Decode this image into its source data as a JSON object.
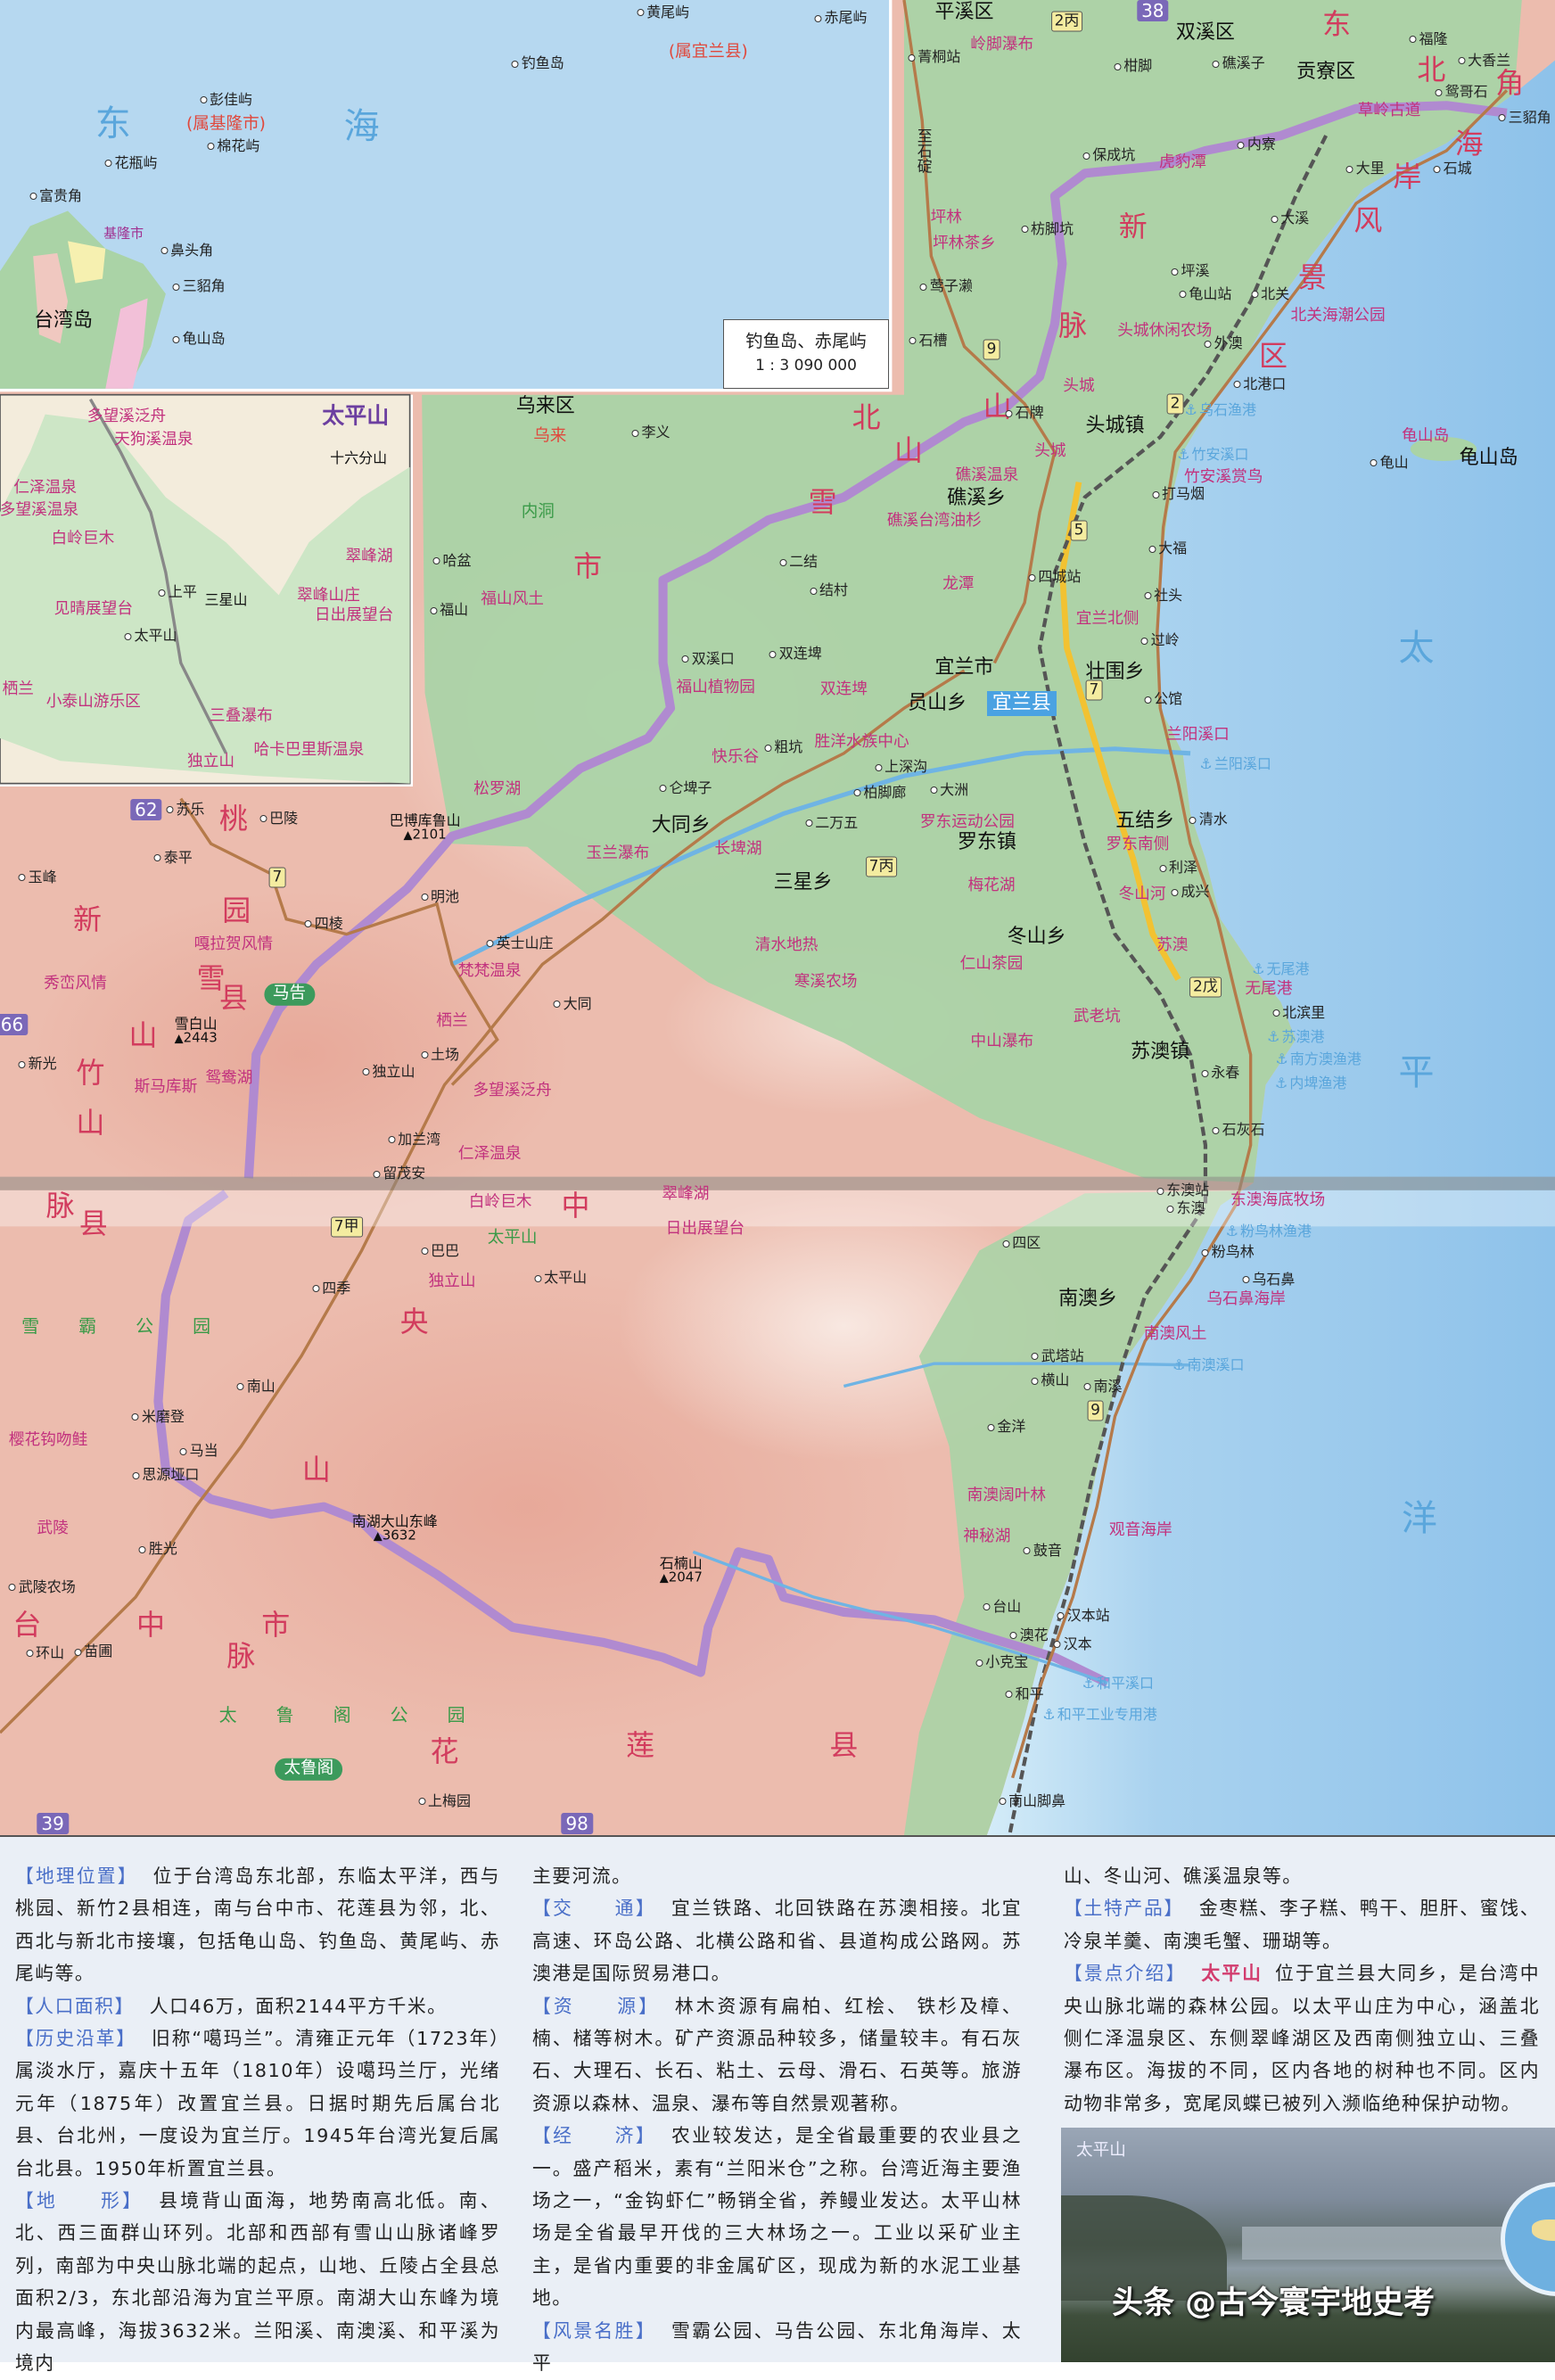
{
  "colors": {
    "sea": "#b4d6ee",
    "plain": "#a9d3a4",
    "mountain": "#ecbcae",
    "county_boundary": "#a87cc4",
    "scenic": "#c2327e",
    "section_label": "#4a6fc8"
  },
  "inset_diaoyu": {
    "scale_title": "钓鱼岛、赤尾屿",
    "scale_ratio": "1 : 3 090 000"
  },
  "map": {
    "labels": [
      {
        "text": "黄尾屿",
        "kind": "town"
      },
      {
        "text": "赤尾屿",
        "kind": "town"
      },
      {
        "text": "(属宜兰县)",
        "kind": "red"
      },
      {
        "text": "钓鱼岛",
        "kind": "town"
      },
      {
        "text": "彭佳屿",
        "kind": "town"
      },
      {
        "text": "东",
        "kind": "sea"
      },
      {
        "text": "(属基隆市)",
        "kind": "red"
      },
      {
        "text": "海",
        "kind": "sea"
      },
      {
        "text": "棉花屿",
        "kind": "town"
      },
      {
        "text": "花瓶屿",
        "kind": "town"
      },
      {
        "text": "富贵角",
        "kind": "town"
      },
      {
        "text": "基隆市",
        "kind": "smallpurple"
      },
      {
        "text": "鼻头角",
        "kind": "town"
      },
      {
        "text": "三貂角",
        "kind": "town"
      },
      {
        "text": "台湾岛",
        "kind": "major"
      },
      {
        "text": "龟山岛",
        "kind": "town"
      },
      {
        "text": "太平山",
        "kind": "title"
      },
      {
        "text": "多望溪泛舟",
        "kind": "scenic"
      },
      {
        "text": "天狗溪温泉",
        "kind": "scenic"
      },
      {
        "text": "十六分山",
        "kind": "mtn"
      },
      {
        "text": "仁泽温泉",
        "kind": "scenic"
      },
      {
        "text": "多望溪温泉",
        "kind": "scenic"
      },
      {
        "text": "白岭巨木",
        "kind": "scenic"
      },
      {
        "text": "翠峰湖",
        "kind": "scenic"
      },
      {
        "text": "上平",
        "kind": "town"
      },
      {
        "text": "三星山",
        "kind": "mtn"
      },
      {
        "text": "翠峰山庄",
        "kind": "scenic"
      },
      {
        "text": "见晴展望台",
        "kind": "scenic"
      },
      {
        "text": "日出展望台",
        "kind": "scenic"
      },
      {
        "text": "太平山",
        "kind": "town"
      },
      {
        "text": "栖兰",
        "kind": "scenic"
      },
      {
        "text": "小泰山游乐区",
        "kind": "scenic"
      },
      {
        "text": "三叠瀑布",
        "kind": "scenic"
      },
      {
        "text": "哈卡巴里斯温泉",
        "kind": "scenic"
      },
      {
        "text": "独立山",
        "kind": "scenic"
      },
      {
        "text": "平溪区",
        "kind": "major"
      },
      {
        "text": "2丙",
        "kind": "shieldY"
      },
      {
        "text": "38",
        "kind": "shieldP"
      },
      {
        "text": "双溪区",
        "kind": "major"
      },
      {
        "text": "东",
        "kind": "region"
      },
      {
        "text": "福隆",
        "kind": "town"
      },
      {
        "text": "岭脚瀑布",
        "kind": "scenic"
      },
      {
        "text": "菁桐站",
        "kind": "town"
      },
      {
        "text": "大香兰",
        "kind": "town"
      },
      {
        "text": "北",
        "kind": "region"
      },
      {
        "text": "柑脚",
        "kind": "town"
      },
      {
        "text": "礁溪子",
        "kind": "town"
      },
      {
        "text": "贡寮区",
        "kind": "major"
      },
      {
        "text": "角",
        "kind": "region"
      },
      {
        "text": "鸳哥石",
        "kind": "town"
      },
      {
        "text": "草岭古道",
        "kind": "scenic"
      },
      {
        "text": "三貂角",
        "kind": "town"
      },
      {
        "text": "至石碇",
        "kind": "vtown"
      },
      {
        "text": "内寮",
        "kind": "town"
      },
      {
        "text": "保成坑",
        "kind": "town"
      },
      {
        "text": "虎豹潭",
        "kind": "scenic"
      },
      {
        "text": "海",
        "kind": "region"
      },
      {
        "text": "大里",
        "kind": "town"
      },
      {
        "text": "石城",
        "kind": "town"
      },
      {
        "text": "岸",
        "kind": "region"
      },
      {
        "text": "坪林",
        "kind": "scenic"
      },
      {
        "text": "枋脚坑",
        "kind": "town"
      },
      {
        "text": "新",
        "kind": "region"
      },
      {
        "text": "风",
        "kind": "region"
      },
      {
        "text": "大溪",
        "kind": "town"
      },
      {
        "text": "坪林茶乡",
        "kind": "scenic"
      },
      {
        "text": "坪溪",
        "kind": "town"
      },
      {
        "text": "景",
        "kind": "region"
      },
      {
        "text": "莺子濑",
        "kind": "town"
      },
      {
        "text": "龟山站",
        "kind": "town"
      },
      {
        "text": "北关",
        "kind": "town"
      },
      {
        "text": "北关海潮公园",
        "kind": "scenic"
      },
      {
        "text": "脉",
        "kind": "region"
      },
      {
        "text": "头城休闲农场",
        "kind": "scenic"
      },
      {
        "text": "石槽",
        "kind": "town"
      },
      {
        "text": "9",
        "kind": "shieldY"
      },
      {
        "text": "外澳",
        "kind": "town"
      },
      {
        "text": "区",
        "kind": "region"
      },
      {
        "text": "北港口",
        "kind": "town"
      },
      {
        "text": "山",
        "kind": "region"
      },
      {
        "text": "石牌",
        "kind": "town"
      },
      {
        "text": "头城",
        "kind": "scenic"
      },
      {
        "text": "2",
        "kind": "shieldY"
      },
      {
        "text": "乌石渔港",
        "kind": "port"
      },
      {
        "text": "头城镇",
        "kind": "major"
      },
      {
        "text": "龟山岛",
        "kind": "scenic"
      },
      {
        "text": "龟山",
        "kind": "town"
      },
      {
        "text": "龟山岛",
        "kind": "major"
      },
      {
        "text": "竹安溪口",
        "kind": "port"
      },
      {
        "text": "头城",
        "kind": "scenic"
      },
      {
        "text": "竹安溪赏鸟",
        "kind": "scenic"
      },
      {
        "text": "礁溪温泉",
        "kind": "scenic"
      },
      {
        "text": "打马烟",
        "kind": "town"
      },
      {
        "text": "礁溪乡",
        "kind": "major"
      },
      {
        "text": "礁溪台湾油杉",
        "kind": "scenic"
      },
      {
        "text": "北",
        "kind": "region"
      },
      {
        "text": "山",
        "kind": "region"
      },
      {
        "text": "雪",
        "kind": "region"
      },
      {
        "text": "乌来区",
        "kind": "major"
      },
      {
        "text": "乌来",
        "kind": "red"
      },
      {
        "text": "李义",
        "kind": "town"
      },
      {
        "text": "内洞",
        "kind": "green"
      },
      {
        "text": "哈盆",
        "kind": "town"
      },
      {
        "text": "市",
        "kind": "region"
      },
      {
        "text": "福山风土",
        "kind": "scenic"
      },
      {
        "text": "福山",
        "kind": "town"
      },
      {
        "text": "二结",
        "kind": "town"
      },
      {
        "text": "结村",
        "kind": "town"
      },
      {
        "text": "龙潭",
        "kind": "scenic"
      },
      {
        "text": "四城站",
        "kind": "town"
      },
      {
        "text": "大福",
        "kind": "town"
      },
      {
        "text": "社头",
        "kind": "town"
      },
      {
        "text": "宜兰北侧",
        "kind": "scenic"
      },
      {
        "text": "过岭",
        "kind": "town"
      },
      {
        "text": "太",
        "kind": "sea"
      },
      {
        "text": "双溪口",
        "kind": "town"
      },
      {
        "text": "双连埤",
        "kind": "town"
      },
      {
        "text": "宜兰市",
        "kind": "major"
      },
      {
        "text": "壮围乡",
        "kind": "major"
      },
      {
        "text": "福山植物园",
        "kind": "scenic"
      },
      {
        "text": "双连埤",
        "kind": "scenic"
      },
      {
        "text": "7",
        "kind": "shieldY"
      },
      {
        "text": "公馆",
        "kind": "town"
      },
      {
        "text": "员山乡",
        "kind": "major"
      },
      {
        "text": "宜兰县",
        "kind": "bluebox"
      },
      {
        "text": "兰阳溪口",
        "kind": "scenic"
      },
      {
        "text": "粗坑",
        "kind": "town"
      },
      {
        "text": "胜洋水族中心",
        "kind": "scenic"
      },
      {
        "text": "快乐谷",
        "kind": "scenic"
      },
      {
        "text": "兰阳溪口",
        "kind": "port"
      },
      {
        "text": "上深沟",
        "kind": "town"
      },
      {
        "text": "松罗湖",
        "kind": "scenic"
      },
      {
        "text": "仑埤子",
        "kind": "town"
      },
      {
        "text": "柏脚廊",
        "kind": "town"
      },
      {
        "text": "大洲",
        "kind": "town"
      },
      {
        "text": "大同乡",
        "kind": "major"
      },
      {
        "text": "二万五",
        "kind": "town"
      },
      {
        "text": "罗东运动公园",
        "kind": "scenic"
      },
      {
        "text": "五结乡",
        "kind": "major"
      },
      {
        "text": "清水",
        "kind": "town"
      },
      {
        "text": "巴博库鲁山",
        "kind": "mtn",
        "elev": "2101"
      },
      {
        "text": "罗东镇",
        "kind": "major"
      },
      {
        "text": "罗东南侧",
        "kind": "scenic"
      },
      {
        "text": "玉兰瀑布",
        "kind": "scenic"
      },
      {
        "text": "长埤湖",
        "kind": "scenic"
      },
      {
        "text": "7丙",
        "kind": "shieldY"
      },
      {
        "text": "利泽",
        "kind": "town"
      },
      {
        "text": "三星乡",
        "kind": "major"
      },
      {
        "text": "梅花湖",
        "kind": "scenic"
      },
      {
        "text": "冬山河",
        "kind": "scenic"
      },
      {
        "text": "成兴",
        "kind": "town"
      },
      {
        "text": "冬山乡",
        "kind": "major"
      },
      {
        "text": "清水地热",
        "kind": "scenic"
      },
      {
        "text": "苏澳",
        "kind": "scenic"
      },
      {
        "text": "仁山茶园",
        "kind": "scenic"
      },
      {
        "text": "无尾港",
        "kind": "port"
      },
      {
        "text": "寒溪农场",
        "kind": "scenic"
      },
      {
        "text": "无尾港",
        "kind": "scenic"
      },
      {
        "text": "北滨里",
        "kind": "town"
      },
      {
        "text": "武老坑",
        "kind": "scenic"
      },
      {
        "text": "苏澳港",
        "kind": "port"
      },
      {
        "text": "中山瀑布",
        "kind": "scenic"
      },
      {
        "text": "苏澳镇",
        "kind": "major"
      },
      {
        "text": "南方澳渔港",
        "kind": "port"
      },
      {
        "text": "永春",
        "kind": "town"
      },
      {
        "text": "平",
        "kind": "sea"
      },
      {
        "text": "内埤渔港",
        "kind": "port"
      },
      {
        "text": "石灰石",
        "kind": "town"
      },
      {
        "text": "英士山庄",
        "kind": "town"
      },
      {
        "text": "梵梵温泉",
        "kind": "scenic"
      },
      {
        "text": "大同",
        "kind": "town"
      },
      {
        "text": "栖兰",
        "kind": "scenic"
      },
      {
        "text": "土场",
        "kind": "town"
      },
      {
        "text": "独立山",
        "kind": "town"
      },
      {
        "text": "多望溪泛舟",
        "kind": "scenic"
      },
      {
        "text": "加兰湾",
        "kind": "town"
      },
      {
        "text": "仁泽温泉",
        "kind": "scenic"
      },
      {
        "text": "留茂安",
        "kind": "town"
      },
      {
        "text": "62",
        "kind": "shieldP"
      },
      {
        "text": "苏乐",
        "kind": "town"
      },
      {
        "text": "桃",
        "kind": "region"
      },
      {
        "text": "巴陵",
        "kind": "town"
      },
      {
        "text": "泰平",
        "kind": "town"
      },
      {
        "text": "玉峰",
        "kind": "town"
      },
      {
        "text": "7",
        "kind": "shieldY"
      },
      {
        "text": "明池",
        "kind": "town"
      },
      {
        "text": "园",
        "kind": "region"
      },
      {
        "text": "新",
        "kind": "region"
      },
      {
        "text": "四棱",
        "kind": "town"
      },
      {
        "text": "嘎拉贺风情",
        "kind": "scenic"
      },
      {
        "text": "雪",
        "kind": "region"
      },
      {
        "text": "秀峦风情",
        "kind": "scenic"
      },
      {
        "text": "县",
        "kind": "region"
      },
      {
        "text": "马告",
        "kind": "greenbox"
      },
      {
        "text": "66",
        "kind": "shieldP"
      },
      {
        "text": "雪白山",
        "kind": "mtn",
        "elev": "2443"
      },
      {
        "text": "山",
        "kind": "region"
      },
      {
        "text": "新光",
        "kind": "town"
      },
      {
        "text": "斯马库斯",
        "kind": "scenic"
      },
      {
        "text": "竹",
        "kind": "region"
      },
      {
        "text": "鸳鸯湖",
        "kind": "scenic"
      },
      {
        "text": "山",
        "kind": "region"
      },
      {
        "text": "脉",
        "kind": "region"
      },
      {
        "text": "白岭巨木",
        "kind": "scenic"
      },
      {
        "text": "中",
        "kind": "region"
      },
      {
        "text": "翠峰湖",
        "kind": "scenic"
      },
      {
        "text": "县",
        "kind": "region"
      },
      {
        "text": "7甲",
        "kind": "shieldY"
      },
      {
        "text": "日出展望台",
        "kind": "scenic"
      },
      {
        "text": "太平山",
        "kind": "green"
      },
      {
        "text": "巴巴",
        "kind": "town"
      },
      {
        "text": "太平山",
        "kind": "town"
      },
      {
        "text": "独立山",
        "kind": "scenic"
      },
      {
        "text": "四季",
        "kind": "town"
      },
      {
        "text": "央",
        "kind": "region"
      },
      {
        "text": "雪霸公园",
        "kind": "park"
      },
      {
        "text": "南山",
        "kind": "town"
      },
      {
        "text": "米磨登",
        "kind": "town"
      },
      {
        "text": "樱花钩吻鲑",
        "kind": "scenic"
      },
      {
        "text": "马当",
        "kind": "town"
      },
      {
        "text": "山",
        "kind": "region"
      },
      {
        "text": "思源垭口",
        "kind": "town"
      },
      {
        "text": "南湖大山东峰",
        "kind": "mtn",
        "elev": "3632"
      },
      {
        "text": "武陵",
        "kind": "scenic"
      },
      {
        "text": "胜光",
        "kind": "town"
      },
      {
        "text": "石楠山",
        "kind": "mtn",
        "elev": "2047"
      },
      {
        "text": "武陵农场",
        "kind": "town"
      },
      {
        "text": "台",
        "kind": "region"
      },
      {
        "text": "中",
        "kind": "region"
      },
      {
        "text": "市",
        "kind": "region"
      },
      {
        "text": "环山",
        "kind": "town"
      },
      {
        "text": "苗圃",
        "kind": "town"
      },
      {
        "text": "脉",
        "kind": "region"
      },
      {
        "text": "太鲁阁公园",
        "kind": "park"
      },
      {
        "text": "花",
        "kind": "region"
      },
      {
        "text": "莲",
        "kind": "region"
      },
      {
        "text": "县",
        "kind": "region"
      },
      {
        "text": "太鲁阁",
        "kind": "greenbox"
      },
      {
        "text": "上梅园",
        "kind": "town"
      },
      {
        "text": "39",
        "kind": "shieldP"
      },
      {
        "text": "98",
        "kind": "shieldP"
      },
      {
        "text": "东澳站",
        "kind": "town"
      },
      {
        "text": "东澳",
        "kind": "town"
      },
      {
        "text": "东澳海底牧场",
        "kind": "scenic"
      },
      {
        "text": "四区",
        "kind": "town"
      },
      {
        "text": "粉鸟林渔港",
        "kind": "port"
      },
      {
        "text": "粉鸟林",
        "kind": "town"
      },
      {
        "text": "乌石鼻",
        "kind": "town"
      },
      {
        "text": "南澳乡",
        "kind": "major"
      },
      {
        "text": "乌石鼻海岸",
        "kind": "scenic"
      },
      {
        "text": "南澳风土",
        "kind": "scenic"
      },
      {
        "text": "武塔站",
        "kind": "town"
      },
      {
        "text": "南澳溪口",
        "kind": "port"
      },
      {
        "text": "横山",
        "kind": "town"
      },
      {
        "text": "南溪",
        "kind": "town"
      },
      {
        "text": "9",
        "kind": "shieldY"
      },
      {
        "text": "金洋",
        "kind": "town"
      },
      {
        "text": "南澳阔叶林",
        "kind": "scenic"
      },
      {
        "text": "洋",
        "kind": "sea"
      },
      {
        "text": "观音海岸",
        "kind": "scenic"
      },
      {
        "text": "神秘湖",
        "kind": "scenic"
      },
      {
        "text": "鼓音",
        "kind": "town"
      },
      {
        "text": "台山",
        "kind": "town"
      },
      {
        "text": "汉本站",
        "kind": "town"
      },
      {
        "text": "澳花",
        "kind": "town"
      },
      {
        "text": "汉本",
        "kind": "town"
      },
      {
        "text": "小克宝",
        "kind": "town"
      },
      {
        "text": "和平溪口",
        "kind": "port"
      },
      {
        "text": "和平",
        "kind": "town"
      },
      {
        "text": "和平工业专用港",
        "kind": "port"
      },
      {
        "text": "南山脚鼻",
        "kind": "town"
      },
      {
        "text": "2戊",
        "kind": "shieldY"
      },
      {
        "text": "5",
        "kind": "shieldY"
      }
    ]
  },
  "info": {
    "col1": [
      {
        "label": "【地理位置】",
        "text": "位于台湾岛东北部，东临太平洋，西与桃园、新竹2县相连，南与台中市、花莲县为邻，北、西北与新北市接壤，包括龟山岛、钓鱼岛、黄尾屿、赤尾屿等。"
      },
      {
        "label": "【人口面积】",
        "text": "人口46万，面积2144平方千米。"
      },
      {
        "label": "【历史沿革】",
        "text": "旧称“噶玛兰”。清雍正元年（1723年）属淡水厅，嘉庆十五年（1810年）设噶玛兰厅，光绪元年（1875年）改置宜兰县。日据时期先后属台北县、台北州，一度设为宜兰厅。1945年台湾光复后属台北县。1950年析置宜兰县。"
      },
      {
        "label": "【地　　形】",
        "text": "县境背山面海，地势南高北低。南、北、西三面群山环列。北部和西部有雪山山脉诸峰罗列，南部为中央山脉北端的起点，山地、丘陵占全县总面积2/3，东北部沿海为宜兰平原。南湖大山东峰为境内最高峰，海拔3632米。兰阳溪、南澳溪、和平溪为境内"
      }
    ],
    "col2": [
      {
        "label": "",
        "text": "主要河流。"
      },
      {
        "label": "【交　　通】",
        "text": "宜兰铁路、北回铁路在苏澳相接。北宜高速、环岛公路、北横公路和省、县道构成公路网。苏澳港是国际贸易港口。"
      },
      {
        "label": "【资　　源】",
        "text": "林木资源有扁柏、红桧、 铁杉及樟、楠、槠等树木。矿产资源品种较多，储量较丰。有石灰石、大理石、长石、粘土、云母、滑石、石英等。旅游资源以森林、温泉、瀑布等自然景观著称。"
      },
      {
        "label": "【经　　济】",
        "text": "农业较发达，是全省最重要的农业县之一。盛产稻米，素有“兰阳米仓”之称。台湾近海主要渔场之一，“金钩虾仁”畅销全省，养鳗业发达。太平山林场是全省最早开伐的三大林场之一。工业以采矿业主主，是省内重要的非金属矿区，现成为新的水泥工业基地。"
      },
      {
        "label": "【风景名胜】",
        "text": "雪霸公园、马告公园、东北角海岸、太平"
      }
    ],
    "col3": [
      {
        "label": "",
        "text": "山、冬山河、礁溪温泉等。"
      },
      {
        "label": "【土特产品】",
        "text": "金枣糕、李子糕、鸭干、胆肝、蜜饯、冷泉羊羹、南澳毛蟹、珊瑚等。"
      },
      {
        "label": "【景点介绍】",
        "highlight": "太平山",
        "text": "位于宜兰县大同乡，是台湾中央山脉北端的森林公园。以太平山庄为中心，涵盖北侧仁泽温泉区、东侧翠峰湖区及西南侧独立山、三叠瀑布区。海拔的不同，区内各地的树种也不同。区内动物非常多，宽尾凤蝶已被列入濒临绝种保护动物。"
      }
    ]
  },
  "photo": {
    "caption": "太平山",
    "watermark": "头条 @古今寰宇地史考"
  }
}
